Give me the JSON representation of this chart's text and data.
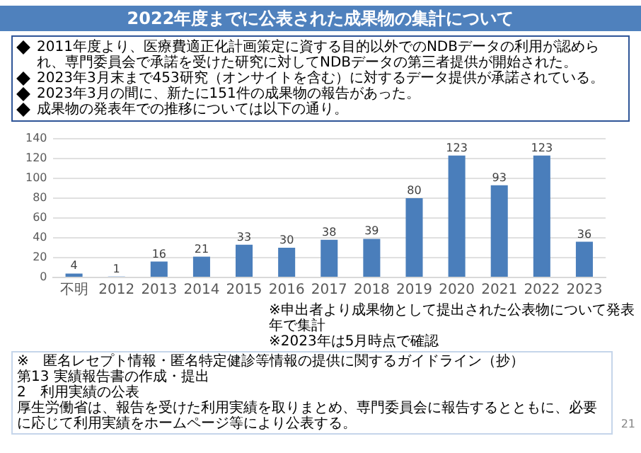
{
  "chart_data": {
    "type": "bar",
    "title": "2022年度までに公表された成果物の集計について",
    "categories": [
      "不明",
      "2012",
      "2013",
      "2014",
      "2015",
      "2016",
      "2017",
      "2018",
      "2019",
      "2020",
      "2021",
      "2022",
      "2023"
    ],
    "values": [
      4,
      1,
      16,
      21,
      33,
      30,
      38,
      39,
      80,
      123,
      93,
      123,
      36
    ],
    "colors": [
      "#4a7ebb",
      "#8eb4e3",
      "#4a7ebb",
      "#4a7ebb",
      "#4a7ebb",
      "#4a7ebb",
      "#4a7ebb",
      "#4a7ebb",
      "#4a7ebb",
      "#4a7ebb",
      "#4a7ebb",
      "#4a7ebb",
      "#4a7ebb"
    ],
    "ylim": [
      0,
      140
    ],
    "yticks": [
      0,
      20,
      40,
      60,
      80,
      100,
      120,
      140
    ],
    "grid": "y",
    "data_labels": true,
    "annotations": [
      "2011年度より、医療費適正化計画策定に資する目的以外でのNDBデータの利用が認められ、専門委員会で承諾を受けた研究に対してNDBデータの第三者提供が開始された。",
      "2023年3月末まで453研究（オンサイトを含む）に対するデータ提供が承諾されている。",
      "2023年3月の間に、新たに151件の成果物の報告があった。",
      "成果物の発表年での推移については以下の通り。",
      "※申出者より成果物として提出された公表物について発表年で集計",
      "※2023年は5月時点で確認",
      "※　匿名レセプト情報・匿名特定健診等情報の提供に関するガイドライン（抄）",
      "第13 実績報告書の作成・提出",
      "2　利用実績の公表",
      "厚生労働省は、報告を受けた利用実績を取りまとめ、専門委員会に報告するとともに、必要に応じて利用実績をホームページ等により公表する。",
      "21"
    ]
  }
}
